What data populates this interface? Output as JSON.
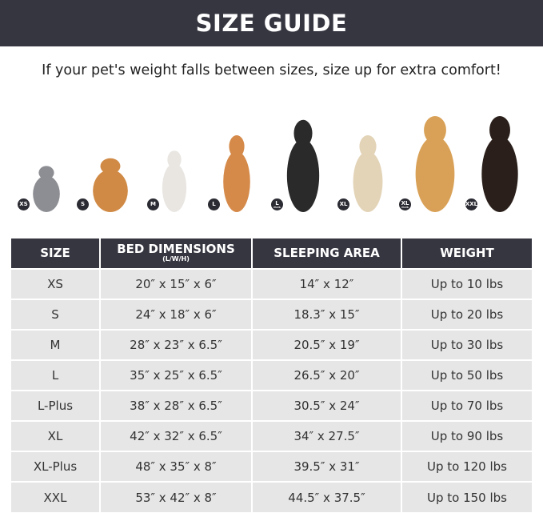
{
  "banner": {
    "title": "SIZE GUIDE"
  },
  "subtitle": "If your pet's weight falls between sizes, size up for extra comfort!",
  "pets": [
    {
      "badge": "XS",
      "plus": "",
      "animal": "gray-cat",
      "color": "#8d8e93"
    },
    {
      "badge": "S",
      "plus": "",
      "animal": "pomeranian",
      "color": "#d08a45"
    },
    {
      "badge": "M",
      "plus": "",
      "animal": "french-bulldog",
      "color": "#e9e6e2"
    },
    {
      "badge": "L",
      "plus": "",
      "animal": "shiba-inu",
      "color": "#d58a4a"
    },
    {
      "badge": "L",
      "plus": "PLUS",
      "animal": "border-collie",
      "color": "#2a2a2a"
    },
    {
      "badge": "XL",
      "plus": "",
      "animal": "labrador",
      "color": "#e3d4b8"
    },
    {
      "badge": "XL",
      "plus": "PLUS",
      "animal": "golden-retriever",
      "color": "#d9a157"
    },
    {
      "badge": "XXL",
      "plus": "",
      "animal": "doberman",
      "color": "#2a1f1a"
    }
  ],
  "table": {
    "headers": [
      "SIZE",
      "BED DIMENSIONS",
      "SLEEPING AREA",
      "WEIGHT"
    ],
    "header_unit": "(L/W/H)",
    "rows": [
      [
        "XS",
        "20″ x 15″ x 6″",
        "14″ x 12″",
        "Up to 10 lbs"
      ],
      [
        "S",
        "24″ x 18″ x 6″",
        "18.3″ x 15″",
        "Up to 20 lbs"
      ],
      [
        "M",
        "28″ x 23″ x 6.5″",
        "20.5″ x 19″",
        "Up to 30 lbs"
      ],
      [
        "L",
        "35″ x 25″ x 6.5″",
        "26.5″ x 20″",
        "Up to 50 lbs"
      ],
      [
        "L-Plus",
        "38″ x 28″ x 6.5″",
        "30.5″ x 24″",
        "Up to 70 lbs"
      ],
      [
        "XL",
        "42″ x 32″ x 6.5″",
        "34″ x 27.5″",
        "Up to 90 lbs"
      ],
      [
        "XL-Plus",
        "48″ x 35″ x 8″",
        "39.5″ x 31″",
        "Up to 120 lbs"
      ],
      [
        "XXL",
        "53″ x 42″ x 8″",
        "44.5″ x 37.5″",
        "Up to 150 lbs"
      ]
    ]
  }
}
